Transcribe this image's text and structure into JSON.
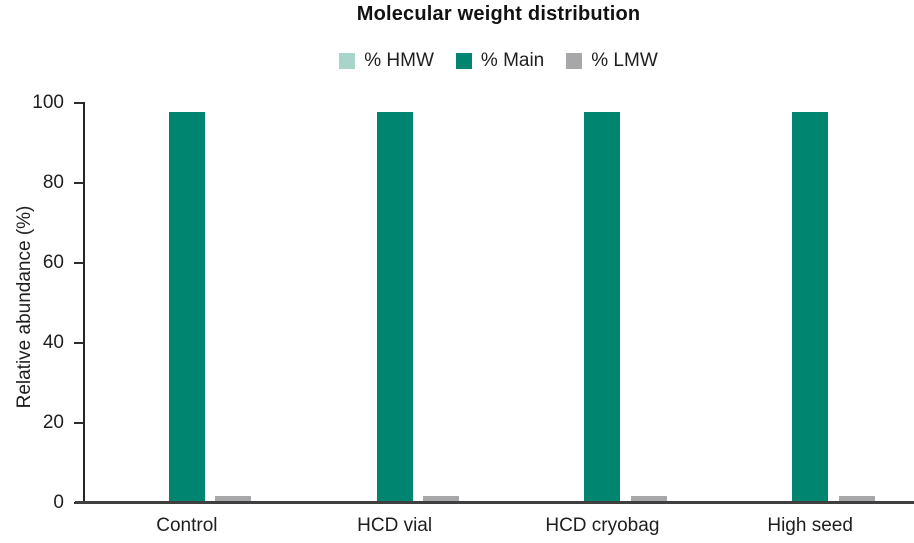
{
  "title": "Molecular weight distribution",
  "chart_data": {
    "type": "bar",
    "title": "Molecular weight distribution",
    "ylabel": "Relative abundance (%)",
    "xlabel": "",
    "ylim": [
      0,
      100
    ],
    "yticks": [
      0,
      20,
      40,
      60,
      80,
      100
    ],
    "categories": [
      "Control",
      "HCD vial",
      "HCD cryobag",
      "High seed"
    ],
    "series": [
      {
        "name": "% HMW",
        "color": "#a9d4ca",
        "values": [
          0.5,
          0.5,
          0.5,
          0.5
        ]
      },
      {
        "name": "% Main",
        "color": "#008670",
        "values": [
          97.7,
          97.7,
          97.7,
          97.7
        ]
      },
      {
        "name": "% LMW",
        "color": "#a7a7a9",
        "values": [
          1.8,
          1.8,
          1.8,
          1.8
        ]
      }
    ],
    "legend_position": "top",
    "grid": false
  },
  "colors": {
    "hmw": "#a9d4ca",
    "main": "#008670",
    "lmw": "#a7a7a9",
    "x_axis_line": "#3f3f3f",
    "y_axis_line": "#262626",
    "text": "#1f1f1f",
    "title_text": "#121212"
  }
}
